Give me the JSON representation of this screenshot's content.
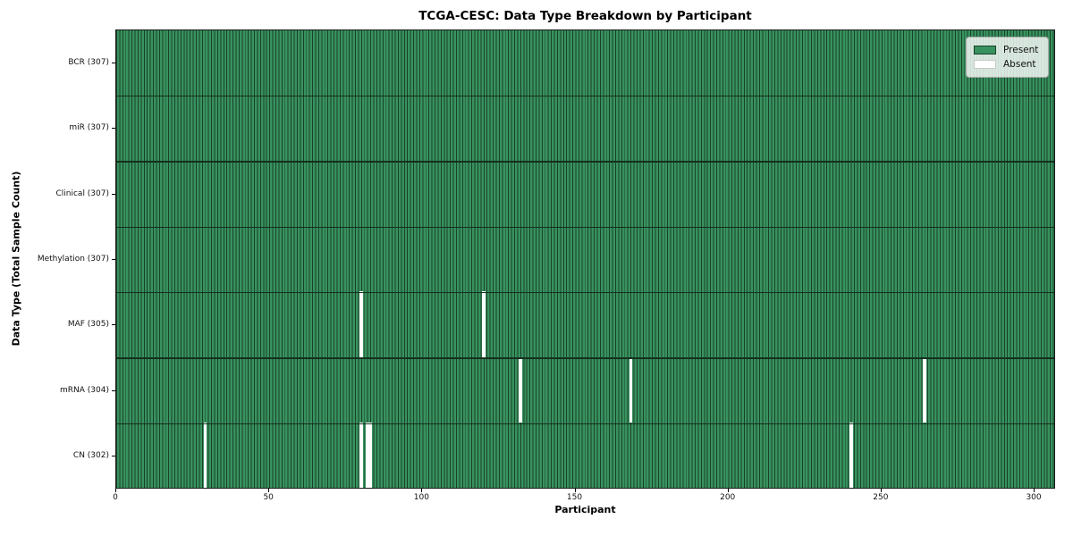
{
  "title": "TCGA-CESC: Data Type Breakdown by Participant",
  "chart_data": {
    "type": "heatmap",
    "title": "TCGA-CESC: Data Type Breakdown by Participant",
    "xlabel": "Participant",
    "ylabel": "Data Type (Total Sample Count)",
    "x_ticks": [
      0,
      50,
      100,
      150,
      200,
      250,
      300
    ],
    "xlim": [
      0,
      307
    ],
    "n_participants": 307,
    "grid": false,
    "rows": [
      {
        "label": "BCR (307)",
        "data_type": "BCR",
        "present_count": 307,
        "absent_participants": []
      },
      {
        "label": "miR (307)",
        "data_type": "miR",
        "present_count": 307,
        "absent_participants": []
      },
      {
        "label": "Clinical (307)",
        "data_type": "Clinical",
        "present_count": 307,
        "absent_participants": []
      },
      {
        "label": "Methylation (307)",
        "data_type": "Methylation",
        "present_count": 307,
        "absent_participants": []
      },
      {
        "label": "MAF (305)",
        "data_type": "MAF",
        "present_count": 305,
        "absent_participants": [
          80,
          120
        ]
      },
      {
        "label": "mRNA (304)",
        "data_type": "mRNA",
        "present_count": 304,
        "absent_participants": [
          132,
          168,
          264
        ]
      },
      {
        "label": "CN (302)",
        "data_type": "CN",
        "present_count": 302,
        "absent_participants": [
          29,
          80,
          82,
          83,
          240
        ]
      }
    ],
    "legend": {
      "position": "upper right",
      "entries": [
        {
          "label": "Present",
          "color": "#2e8b57"
        },
        {
          "label": "Absent",
          "color": "#ffffff"
        }
      ]
    },
    "colors": {
      "present_fill": "#38925f",
      "bar_edge": "#1a4129",
      "absent_fill": "#ffffff",
      "row_separator": "#14301e",
      "axes_edge": "#1a1a1a"
    }
  }
}
